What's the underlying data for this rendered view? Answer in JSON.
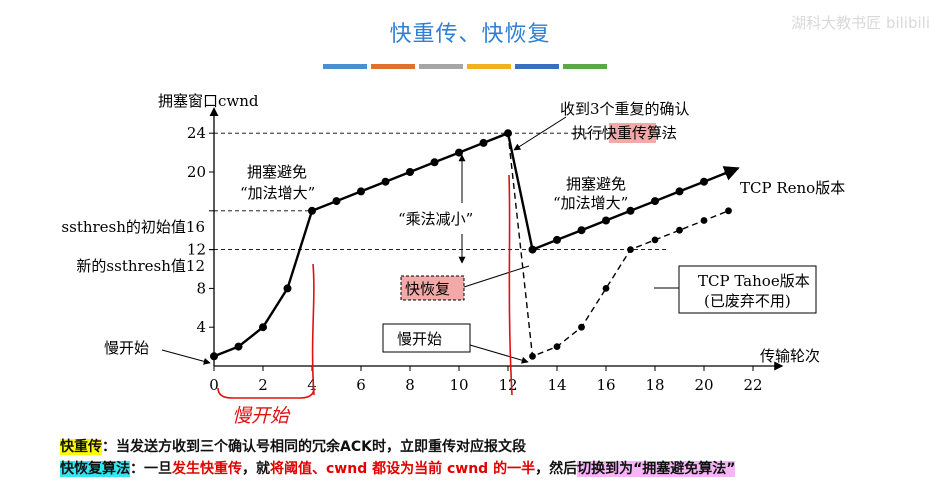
{
  "header": {
    "title": "快重传、快恢复",
    "watermark": "湖科大教书匠 bilibili",
    "color_bars": [
      "#4a8fd0",
      "#e0702a",
      "#a6a6a6",
      "#f0b020",
      "#3a6fc0",
      "#5aa848"
    ]
  },
  "chart_data": {
    "type": "line",
    "ylabel": "拥塞窗口cwnd",
    "xlabel": "传输轮次",
    "xlim": [
      0,
      22
    ],
    "ylim": [
      0,
      25
    ],
    "x_ticks": [
      "0",
      "2",
      "4",
      "6",
      "8",
      "10",
      "12",
      "14",
      "16",
      "18",
      "20",
      "22"
    ],
    "y_ticks": [
      "4",
      "8",
      "12",
      "20",
      "24"
    ],
    "y_tick_values": [
      4,
      8,
      12,
      20,
      24
    ],
    "ssthresh_initial_label": "ssthresh的初始值16",
    "ssthresh_new_label": "新的ssthresh值12",
    "series": [
      {
        "name": "TCP Reno版本",
        "style": "solid",
        "x": [
          0,
          1,
          2,
          3,
          4,
          5,
          6,
          7,
          8,
          9,
          10,
          11,
          12,
          13,
          14,
          15,
          16,
          17,
          18,
          19,
          20,
          21
        ],
        "y": [
          1,
          2,
          4,
          8,
          16,
          17,
          18,
          19,
          20,
          21,
          22,
          23,
          24,
          12,
          13,
          14,
          15,
          16,
          17,
          18,
          19,
          20
        ]
      },
      {
        "name": "TCP Tahoe版本",
        "style": "dashed",
        "x": [
          12,
          13,
          14,
          15,
          16,
          17,
          18,
          19,
          20,
          21
        ],
        "y": [
          24,
          1,
          2,
          4,
          8,
          12,
          13,
          14,
          15,
          16
        ]
      }
    ],
    "annotations": {
      "slow_start": "慢开始",
      "congestion_avoid_1a": "拥塞避免",
      "congestion_avoid_1b": "“加法增大”",
      "multiplicative_decrease": "“乘法减小”",
      "received_3_dup_a": "收到3个重复的确认",
      "received_3_dup_b_pre": "执行",
      "received_3_dup_b_hl": "快重传",
      "received_3_dup_b_post": "算法",
      "congestion_avoid_2a": "拥塞避免",
      "congestion_avoid_2b": "“加法增大”",
      "reno_label": "TCP Reno版本",
      "fast_recovery_box": "快恢复",
      "tahoe_box_line1": "TCP Tahoe版本",
      "tahoe_box_line2": "(已废弃不用)",
      "slow_start_box": "慢开始",
      "handwritten_slow_start": "慢开始"
    }
  },
  "footer": {
    "line1_label": "快重传",
    "line1_text": "：当发送方收到三个确认号相同的冗余ACK时，立即重传对应报文段",
    "line2_label": "快恢复算法",
    "line2_a": "：一旦",
    "line2_b": "发生快重传",
    "line2_c": "，就",
    "line2_d": "将阈值、cwnd 都设为当前 cwnd 的一半",
    "line2_e": "，然后",
    "line2_f": "切换到为“拥塞避免算法”"
  }
}
